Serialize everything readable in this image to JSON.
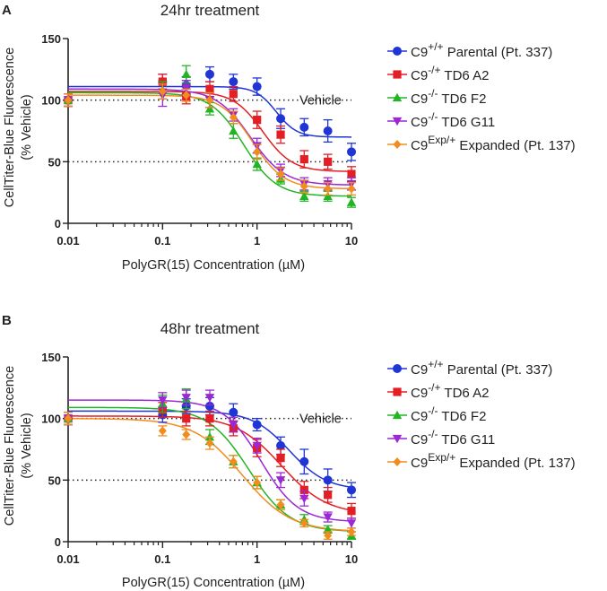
{
  "chart_data": [
    {
      "type": "scatter",
      "panel_label": "A",
      "title": "24hr treatment",
      "xlabel": "PolyGR(15) Concentration (µM)",
      "ylabel": "CellTiter-Blue Fluorescence",
      "ylabel_unit": "(% Vehicle)",
      "xscale": "log",
      "xlim": [
        0.01,
        10
      ],
      "ylim": [
        0,
        150
      ],
      "xticks": [
        0.01,
        0.1,
        1,
        10
      ],
      "xtick_labels": [
        "0.01",
        "0.1",
        "1",
        "10"
      ],
      "yticks": [
        0,
        50,
        100,
        150
      ],
      "ytick_labels": [
        "0",
        "50",
        "100",
        "150"
      ],
      "reference_lines": [
        {
          "y": 100,
          "label": "Vehicle"
        },
        {
          "y": 50,
          "label": ""
        }
      ],
      "x": [
        0.01,
        0.1,
        0.178,
        0.316,
        0.562,
        1.0,
        1.78,
        3.16,
        5.62,
        10.0
      ],
      "series": [
        {
          "name": "C9+/+ Parental (Pt. 337)",
          "base": "C9",
          "sup": "+/+",
          "rest": " Parental (Pt. 337)",
          "color": "#1f35d6",
          "marker": "circle",
          "values": [
            100,
            115,
            112,
            121,
            115,
            111,
            85,
            78,
            75,
            58
          ],
          "errors": [
            5,
            6,
            7,
            6,
            6,
            7,
            8,
            7,
            9,
            7
          ],
          "fit": {
            "top": 111,
            "bottom": 70,
            "ec50": 1.6,
            "hill": 4
          }
        },
        {
          "name": "C9-/+ TD6 A2",
          "base": "C9",
          "sup": "-/+",
          "rest": " TD6 A2",
          "color": "#e31e24",
          "marker": "square",
          "values": [
            100,
            115,
            103,
            109,
            105,
            84,
            72,
            52,
            50,
            40
          ],
          "errors": [
            5,
            6,
            6,
            6,
            6,
            7,
            7,
            7,
            6,
            6
          ],
          "fit": {
            "top": 107,
            "bottom": 42,
            "ec50": 1.15,
            "hill": 2.8
          }
        },
        {
          "name": "C9-/- TD6 F2",
          "base": "C9",
          "sup": "-/-",
          "rest": "  TD6 F2",
          "color": "#22b523",
          "marker": "triangle",
          "values": [
            100,
            108,
            121,
            93,
            75,
            48,
            36,
            22,
            22,
            17
          ],
          "errors": [
            5,
            7,
            7,
            5,
            6,
            5,
            4,
            4,
            4,
            4
          ],
          "fit": {
            "top": 106,
            "bottom": 22,
            "ec50": 0.72,
            "hill": 2.5
          }
        },
        {
          "name": "C9-/- TD6 G11",
          "base": "C9",
          "sup": "-/-",
          "rest": " TD6 G11",
          "color": "#9b27d6",
          "marker": "triangle-down",
          "values": [
            100,
            104,
            110,
            100,
            88,
            63,
            43,
            32,
            32,
            32
          ],
          "errors": [
            5,
            9,
            6,
            6,
            5,
            6,
            5,
            5,
            5,
            5
          ],
          "fit": {
            "top": 109,
            "bottom": 31,
            "ec50": 0.85,
            "hill": 2.4
          }
        },
        {
          "name": "C9Exp/+ Expanded (Pt. 137)",
          "base": "C9",
          "sup": "Exp/+",
          "rest": " Expanded (Pt. 137)",
          "color": "#f28c1e",
          "marker": "diamond",
          "values": [
            100,
            107,
            104,
            100,
            86,
            58,
            40,
            30,
            28,
            28
          ],
          "errors": [
            5,
            6,
            5,
            6,
            5,
            6,
            5,
            5,
            5,
            5
          ],
          "fit": {
            "top": 104,
            "bottom": 28,
            "ec50": 0.9,
            "hill": 2.6
          }
        }
      ]
    },
    {
      "type": "scatter",
      "panel_label": "B",
      "title": "48hr treatment",
      "xlabel": "PolyGR(15) Concentration (µM)",
      "ylabel": "CellTiter-Blue Fluorescence",
      "ylabel_unit": "(% Vehicle)",
      "xscale": "log",
      "xlim": [
        0.01,
        10
      ],
      "ylim": [
        0,
        150
      ],
      "xticks": [
        0.01,
        0.1,
        1,
        10
      ],
      "xtick_labels": [
        "0.01",
        "0.1",
        "1",
        "10"
      ],
      "yticks": [
        0,
        50,
        100,
        150
      ],
      "ytick_labels": [
        "0",
        "50",
        "100",
        "150"
      ],
      "reference_lines": [
        {
          "y": 100,
          "label": "Vehicle"
        },
        {
          "y": 50,
          "label": ""
        }
      ],
      "x": [
        0.01,
        0.1,
        0.178,
        0.316,
        0.562,
        1.0,
        1.78,
        3.16,
        5.62,
        10.0
      ],
      "series": [
        {
          "name": "C9+/+ Parental (Pt. 337)",
          "base": "C9",
          "sup": "+/+",
          "rest": " Parental (Pt. 337)",
          "color": "#1f35d6",
          "marker": "circle",
          "values": [
            100,
            103,
            110,
            110,
            105,
            95,
            78,
            65,
            50,
            42
          ],
          "errors": [
            5,
            6,
            6,
            7,
            7,
            5,
            7,
            10,
            9,
            6
          ],
          "fit": {
            "top": 106,
            "bottom": 42,
            "ec50": 2.2,
            "hill": 2.2
          }
        },
        {
          "name": "C9-/+ TD6 A2",
          "base": "C9",
          "sup": "-/+",
          "rest": " TD6 A2",
          "color": "#e31e24",
          "marker": "square",
          "values": [
            100,
            107,
            100,
            100,
            92,
            76,
            68,
            42,
            38,
            25
          ],
          "errors": [
            5,
            6,
            6,
            6,
            6,
            7,
            7,
            7,
            6,
            6
          ],
          "fit": {
            "top": 102,
            "bottom": 22,
            "ec50": 1.8,
            "hill": 1.8
          }
        },
        {
          "name": "C9-/- TD6 F2",
          "base": "C9",
          "sup": "-/-",
          "rest": "  TD6 F2",
          "color": "#22b523",
          "marker": "triangle",
          "values": [
            100,
            112,
            116,
            85,
            65,
            48,
            30,
            18,
            10,
            5
          ],
          "errors": [
            5,
            7,
            8,
            6,
            5,
            5,
            4,
            4,
            3,
            3
          ],
          "fit": {
            "top": 109,
            "bottom": 8,
            "ec50": 0.82,
            "hill": 2.0
          }
        },
        {
          "name": "C9-/- TD6 G11",
          "base": "C9",
          "sup": "-/-",
          "rest": " TD6 G11",
          "color": "#9b27d6",
          "marker": "triangle-down",
          "values": [
            100,
            115,
            117,
            117,
            95,
            78,
            50,
            35,
            20,
            15
          ],
          "errors": [
            5,
            6,
            6,
            6,
            6,
            6,
            6,
            6,
            4,
            4
          ],
          "fit": {
            "top": 115,
            "bottom": 16,
            "ec50": 1.1,
            "hill": 2.2
          }
        },
        {
          "name": "C9Exp/+ Expanded (Pt. 137)",
          "base": "C9",
          "sup": "Exp/+",
          "rest": " Expanded (Pt. 137)",
          "color": "#f28c1e",
          "marker": "diamond",
          "values": [
            100,
            90,
            87,
            80,
            65,
            48,
            30,
            15,
            5,
            8
          ],
          "errors": [
            5,
            4,
            4,
            5,
            5,
            5,
            4,
            3,
            3,
            3
          ],
          "fit": {
            "top": 100,
            "bottom": 8,
            "ec50": 0.7,
            "hill": 1.7
          }
        }
      ]
    }
  ]
}
